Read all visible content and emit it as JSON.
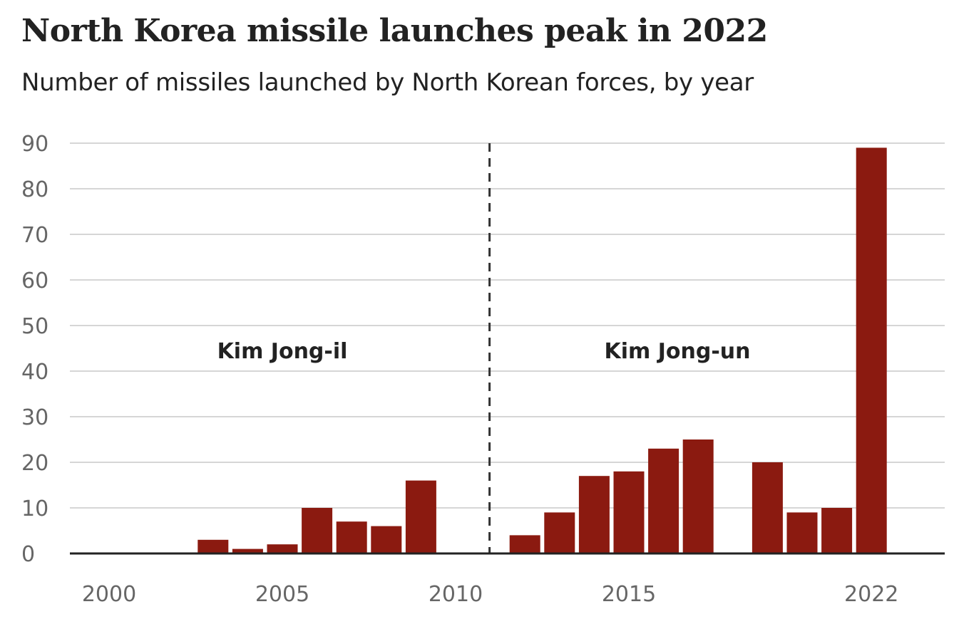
{
  "chart_data": {
    "type": "bar",
    "title": "North Korea missile launches peak in 2022",
    "subtitle": "Number of missiles launched by North Korean forces, by year",
    "xlabel": "",
    "ylabel": "",
    "ylim": [
      0,
      90
    ],
    "y_ticks": [
      0,
      10,
      20,
      30,
      40,
      50,
      60,
      70,
      80,
      90
    ],
    "x_tick_labels": [
      "2000",
      "2005",
      "2010",
      "2015",
      "2022"
    ],
    "categories": [
      2000,
      2001,
      2002,
      2003,
      2004,
      2005,
      2006,
      2007,
      2008,
      2009,
      2010,
      2011,
      2012,
      2013,
      2014,
      2015,
      2016,
      2017,
      2018,
      2019,
      2020,
      2021,
      2022
    ],
    "values": [
      0,
      0,
      0,
      3,
      1,
      2,
      10,
      7,
      6,
      16,
      0,
      0,
      4,
      9,
      17,
      18,
      23,
      25,
      0,
      20,
      9,
      10,
      89
    ],
    "divider_year": 2011,
    "annotations": [
      "Kim Jong-il",
      "Kim Jong-un"
    ],
    "grid": true,
    "bar_color": "#8b1a10"
  }
}
